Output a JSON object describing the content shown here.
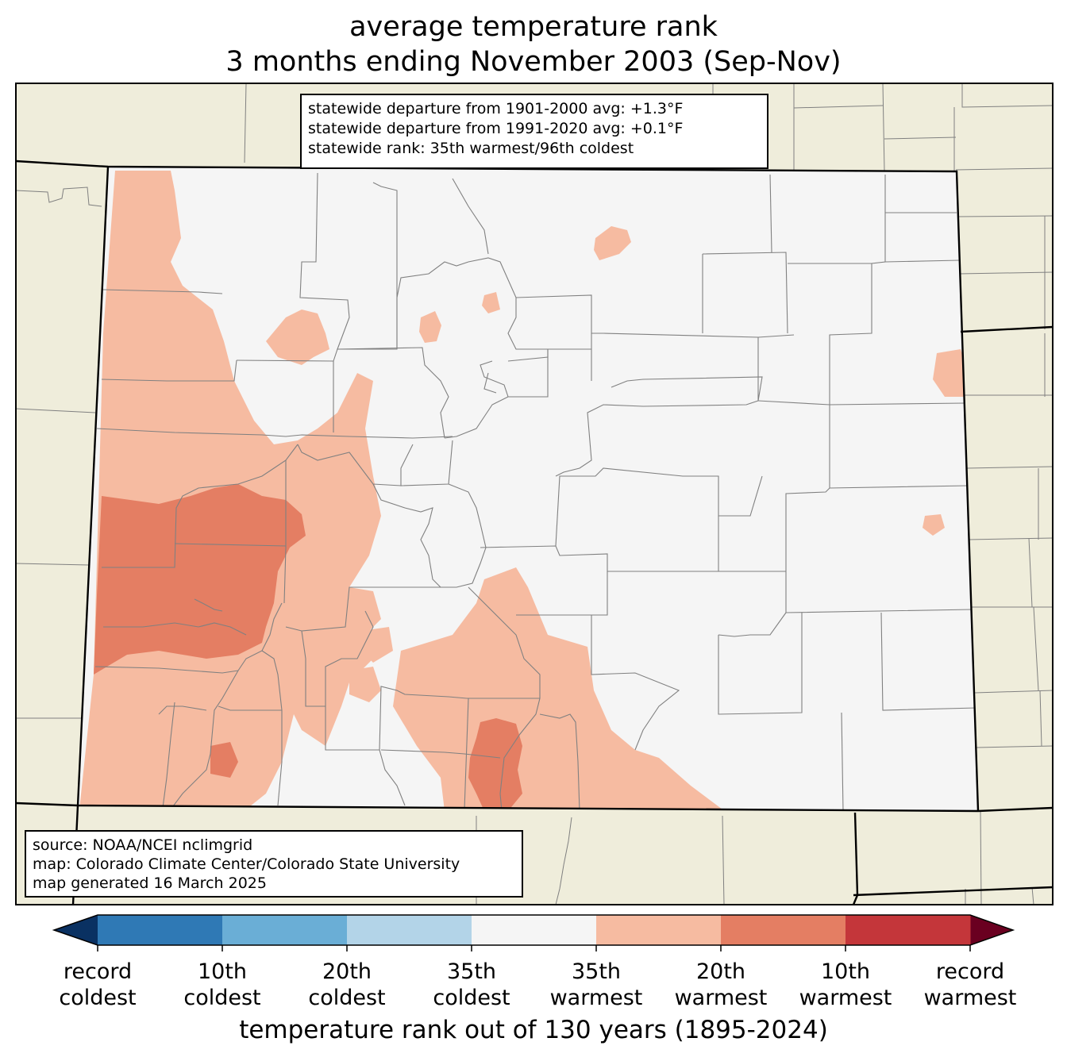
{
  "title": {
    "line1": "average temperature rank",
    "line2": "3 months ending November 2003 (Sep-Nov)"
  },
  "stats": {
    "line1": "statewide departure from 1901-2000 avg: +1.3°F",
    "line2": "statewide departure from 1991-2020 avg: +0.1°F",
    "line3": "statewide rank: 35th warmest/96th coldest"
  },
  "source": {
    "line1": "source: NOAA/NCEI nclimgrid",
    "line2": "map: Colorado Climate Center/Colorado State University",
    "line3": "map generated 16 March 2025"
  },
  "colorbar": {
    "title": "temperature rank out of 130 years (1895-2024)",
    "colors": [
      "#2f79b5",
      "#6aaed6",
      "#b3d4e8",
      "#f5f5f5",
      "#f6bba1",
      "#e47e63",
      "#c4363a"
    ],
    "extend_low_color": "#0a3162",
    "extend_high_color": "#6a0020",
    "labels": [
      {
        "line1": "record",
        "line2": "coldest"
      },
      {
        "line1": "10th",
        "line2": "coldest"
      },
      {
        "line1": "20th",
        "line2": "coldest"
      },
      {
        "line1": "35th",
        "line2": "coldest"
      },
      {
        "line1": "35th",
        "line2": "warmest"
      },
      {
        "line1": "20th",
        "line2": "warmest"
      },
      {
        "line1": "10th",
        "line2": "warmest"
      },
      {
        "line1": "record",
        "line2": "warmest"
      }
    ]
  },
  "map": {
    "land_color": "#efeddb",
    "state_fill_color": "#f5f5f5",
    "border_color": "#000000",
    "county_line_color": "#808080"
  }
}
